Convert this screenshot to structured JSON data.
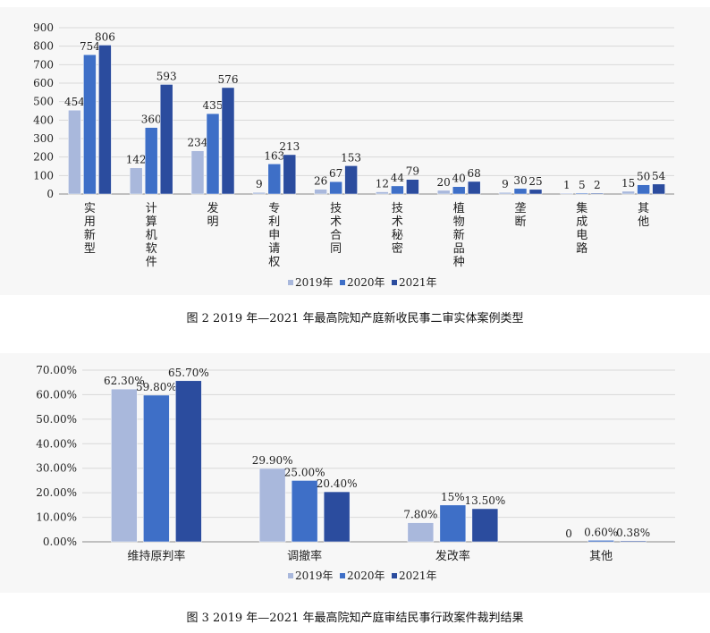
{
  "chart_data": [
    {
      "type": "bar",
      "categories": [
        "实用新型",
        "计算机软件",
        "发明",
        "专利申请权",
        "技术合同",
        "技术秘密",
        "植物新品种",
        "垄断",
        "集成电路",
        "其他"
      ],
      "series": [
        {
          "name": "2019年",
          "values": [
            454,
            142,
            234,
            9,
            26,
            12,
            20,
            9,
            1,
            15
          ]
        },
        {
          "name": "2020年",
          "values": [
            754,
            360,
            435,
            163,
            67,
            44,
            40,
            30,
            5,
            50
          ]
        },
        {
          "name": "2021年",
          "values": [
            806,
            593,
            576,
            213,
            153,
            79,
            68,
            25,
            2,
            54
          ]
        }
      ],
      "value_labels": [
        [
          "454",
          "142",
          "234",
          "9",
          "26",
          "12",
          "20",
          "9",
          "1",
          "15"
        ],
        [
          "754",
          "360",
          "435",
          "163",
          "67",
          "44",
          "40",
          "30",
          "5",
          "50"
        ],
        [
          "806",
          "593",
          "576",
          "213",
          "153",
          "79",
          "68",
          "25",
          "2",
          "54"
        ]
      ],
      "yticks": [
        "0",
        "100",
        "200",
        "300",
        "400",
        "500",
        "600",
        "700",
        "800",
        "900"
      ],
      "ylim": [
        0,
        900
      ],
      "grid": true,
      "legend": "bottom",
      "colors": [
        "#a9b8dc",
        "#3e6fc7",
        "#2b4c9e"
      ],
      "category_orientation": "vertical",
      "caption": "图 2   2019 年—2021 年最高院知产庭新收民事二审实体案例类型"
    },
    {
      "type": "bar",
      "categories": [
        "维持原判率",
        "调撤率",
        "发改率",
        "其他"
      ],
      "series": [
        {
          "name": "2019年",
          "values": [
            62.3,
            29.9,
            7.8,
            0
          ]
        },
        {
          "name": "2020年",
          "values": [
            59.8,
            25.0,
            15.0,
            0.6
          ]
        },
        {
          "name": "2021年",
          "values": [
            65.7,
            20.4,
            13.5,
            0.38
          ]
        }
      ],
      "value_labels": [
        [
          "62.30%",
          "29.90%",
          "7.80%",
          "0"
        ],
        [
          "59.80%",
          "25.00%",
          "15%",
          "0.60%"
        ],
        [
          "65.70%",
          "20.40%",
          "13.50%",
          "0.38%"
        ]
      ],
      "yticks": [
        "0.00%",
        "10.00%",
        "20.00%",
        "30.00%",
        "40.00%",
        "50.00%",
        "60.00%",
        "70.00%"
      ],
      "ylim": [
        0,
        70
      ],
      "grid": true,
      "legend": "bottom",
      "colors": [
        "#a9b8dc",
        "#3e6fc7",
        "#2b4c9e"
      ],
      "category_orientation": "horizontal",
      "caption": "图 3   2019 年—2021 年最高院知产庭审结民事行政案件裁判结果"
    }
  ]
}
